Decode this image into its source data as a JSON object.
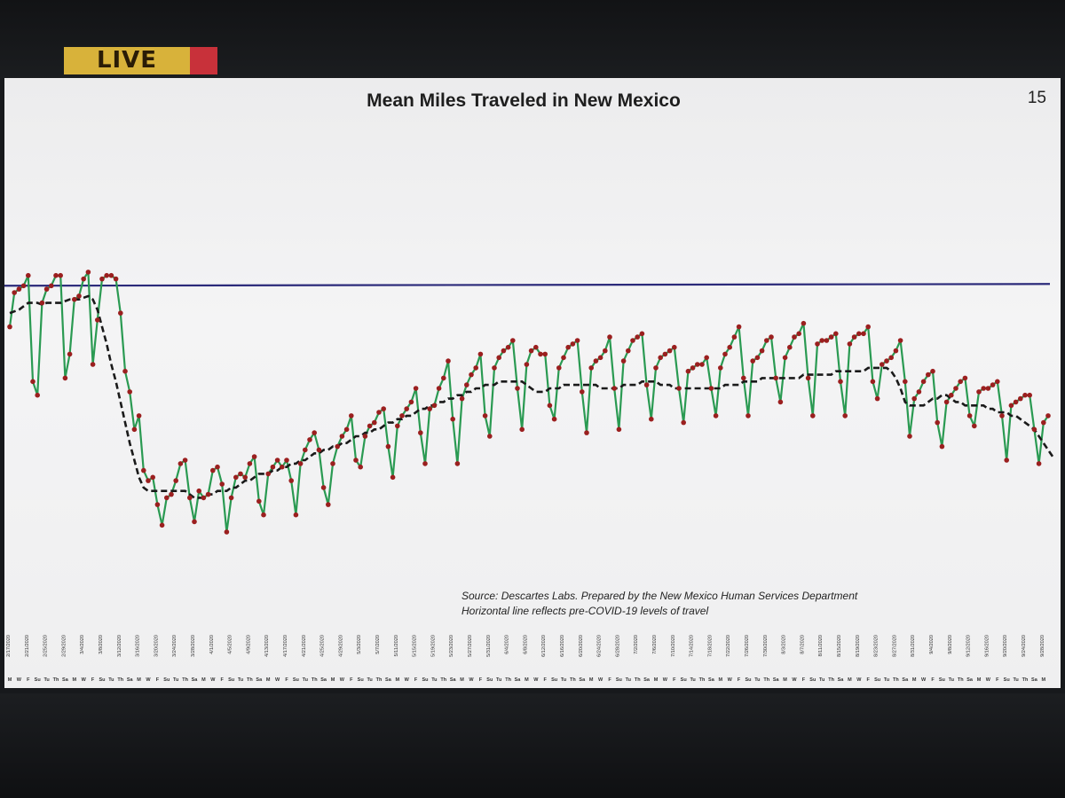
{
  "overlay": {
    "live_label": "LIVE"
  },
  "slide": {
    "title": "Mean Miles Traveled in New Mexico",
    "page_number": "15",
    "source_line1": "Source: Descartes Labs.  Prepared by the New Mexico Human Services Department",
    "source_line2": "Horizontal line reflects pre-COVID-19 levels of travel"
  },
  "chart_data": {
    "type": "line",
    "title": "Mean Miles Traveled in New Mexico",
    "xlabel": "",
    "ylabel": "",
    "grid": false,
    "legend": "none",
    "colors": {
      "daily_line": "#2a9a52",
      "daily_marker": "#9b1f1f",
      "average_line": "#1a1a1a",
      "baseline": "#2b2a7a"
    },
    "start_date": "2020-02-17",
    "x_labels": "dates from 2/17/2020 to 11/29/2020, one per day (illegible in screenshot)",
    "day_labels": [
      "M",
      "Tu",
      "W",
      "Th",
      "F",
      "Sa",
      "Su"
    ],
    "baseline_value": 100,
    "ylim": [
      0,
      140
    ],
    "series": [
      {
        "name": "",
        "style": "solid-with-markers",
        "values": [
          88,
          98,
          99,
          100,
          103,
          72,
          68,
          95,
          99,
          100,
          103,
          103,
          73,
          80,
          96,
          97,
          102,
          104,
          77,
          90,
          102,
          103,
          103,
          102,
          92,
          75,
          69,
          58,
          62,
          46,
          43,
          44,
          36,
          30,
          38,
          39,
          43,
          48,
          49,
          38,
          31,
          40,
          38,
          39,
          46,
          47,
          42,
          28,
          38,
          44,
          45,
          44,
          48,
          50,
          37,
          33,
          45,
          47,
          49,
          47,
          49,
          43,
          33,
          48,
          52,
          55,
          57,
          52,
          41,
          36,
          48,
          53,
          56,
          58,
          62,
          49,
          47,
          56,
          59,
          60,
          63,
          64,
          53,
          44,
          59,
          62,
          64,
          66,
          70,
          57,
          48,
          64,
          65,
          70,
          73,
          78,
          61,
          48,
          67,
          71,
          74,
          76,
          80,
          62,
          56,
          76,
          79,
          81,
          82,
          84,
          70,
          58,
          77,
          81,
          82,
          80,
          80,
          65,
          61,
          76,
          79,
          82,
          83,
          84,
          69,
          57,
          76,
          78,
          79,
          81,
          85,
          70,
          58,
          78,
          81,
          84,
          85,
          86,
          71,
          61,
          76,
          79,
          80,
          81,
          82,
          70,
          60,
          75,
          76,
          77,
          77,
          79,
          70,
          62,
          76,
          80,
          82,
          85,
          88,
          73,
          62,
          78,
          79,
          81,
          84,
          85,
          73,
          66,
          79,
          82,
          85,
          86,
          89,
          73,
          62,
          83,
          84,
          84,
          85,
          86,
          72,
          62,
          83,
          85,
          86,
          86,
          88,
          72,
          67,
          77,
          78,
          79,
          81,
          84,
          72,
          56,
          67,
          69,
          72,
          74,
          75,
          60,
          53,
          66,
          68,
          70,
          72,
          73,
          62,
          59,
          69,
          70,
          70,
          71,
          72,
          62,
          49,
          65,
          66,
          67,
          68,
          68,
          58,
          48,
          60,
          62
        ]
      },
      {
        "name": "",
        "style": "dashed",
        "values": [
          92,
          92.5,
          93,
          94,
          95,
          95,
          95,
          94.5,
          95,
          95,
          95,
          95,
          95.5,
          96,
          96,
          96,
          96.5,
          97,
          96,
          93,
          88,
          83,
          77,
          72,
          66,
          60,
          54,
          49,
          44,
          41,
          40,
          40,
          40,
          40,
          40,
          40,
          40,
          40,
          40,
          39,
          38,
          38,
          38,
          39,
          39,
          40,
          40,
          40,
          41,
          41,
          42,
          43,
          43,
          44,
          45,
          45,
          45,
          46,
          46,
          47,
          47,
          48,
          48,
          49,
          49,
          50,
          51,
          51,
          52,
          52,
          53,
          53,
          54,
          54,
          55,
          56,
          56,
          57,
          57,
          58,
          58,
          59,
          60,
          60,
          61,
          61,
          62,
          62,
          63,
          64,
          64,
          65,
          65,
          66,
          66,
          67,
          67,
          68,
          68,
          69,
          69,
          70,
          70,
          71,
          71,
          71,
          72,
          72,
          72,
          72,
          72,
          72,
          71,
          70,
          69,
          69,
          69,
          70,
          70,
          70,
          71,
          71,
          71,
          71,
          71,
          71,
          71,
          71,
          70,
          70,
          70,
          70,
          70,
          71,
          71,
          71,
          71,
          72,
          72,
          72,
          72,
          71,
          71,
          71,
          70,
          70,
          70,
          70,
          70,
          70,
          70,
          70,
          70,
          70,
          70,
          71,
          71,
          71,
          71,
          72,
          72,
          72,
          72,
          73,
          73,
          73,
          73,
          73,
          73,
          73,
          73,
          73,
          74,
          74,
          74,
          74,
          74,
          74,
          74,
          75,
          75,
          75,
          75,
          75,
          75,
          75,
          76,
          76,
          76,
          76,
          76,
          75,
          73,
          70,
          66,
          65,
          65,
          65,
          65,
          66,
          67,
          67,
          68,
          68,
          67,
          66,
          66,
          65,
          65,
          65,
          65,
          65,
          64,
          64,
          63,
          63,
          63,
          62,
          62,
          61,
          60,
          59,
          58,
          56,
          54,
          52,
          50
        ]
      },
      {
        "name": "",
        "style": "solid",
        "values": [
          100
        ]
      }
    ]
  }
}
